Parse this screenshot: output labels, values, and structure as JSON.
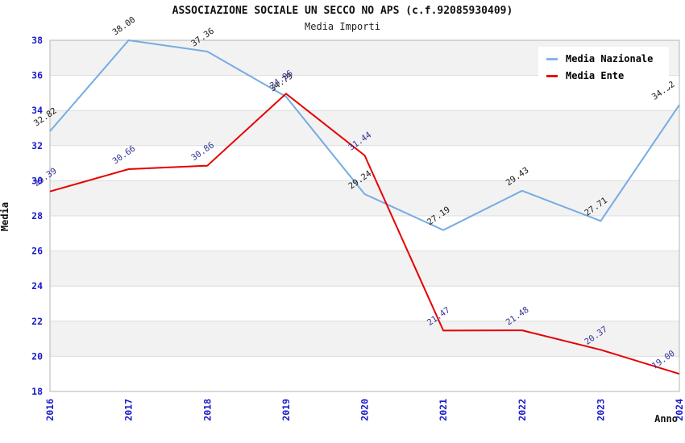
{
  "header": {
    "title": "ASSOCIAZIONE SOCIALE UN SECCO NO APS (c.f.92085930409)",
    "subtitle": "Media Importi"
  },
  "legend": {
    "items": [
      {
        "label": "Media Nazionale",
        "color": "#85b5e8"
      },
      {
        "label": "Media Ente",
        "color": "#ee0000"
      }
    ]
  },
  "chart_data": {
    "type": "line",
    "title": "ASSOCIAZIONE SOCIALE UN SECCO NO APS (c.f.92085930409)",
    "subtitle": "Media Importi",
    "xlabel": "Anno",
    "ylabel": "Media",
    "x": [
      "2016",
      "2017",
      "2018",
      "2019",
      "2020",
      "2021",
      "2022",
      "2023",
      "2024"
    ],
    "series": [
      {
        "name": "Media Nazionale",
        "color": "#76ace2",
        "label_color": "#1a1a1a",
        "values": [
          32.82,
          38.0,
          37.36,
          34.79,
          29.24,
          27.19,
          29.43,
          27.71,
          34.32
        ]
      },
      {
        "name": "Media Ente",
        "color": "#e60000",
        "label_color": "#333399",
        "values": [
          29.39,
          30.66,
          30.86,
          34.96,
          31.44,
          21.47,
          21.48,
          20.37,
          19.0
        ]
      }
    ],
    "ylim": [
      18,
      38
    ],
    "y_tick_step": 2,
    "grid": true,
    "legend_position": "top-right",
    "tick_label_color": "#1a1acc",
    "band_colors": [
      "#f2f2f2",
      "#ffffff"
    ],
    "grid_color": "#dcdcdc",
    "plot_border_color": "#b4b4b4"
  }
}
